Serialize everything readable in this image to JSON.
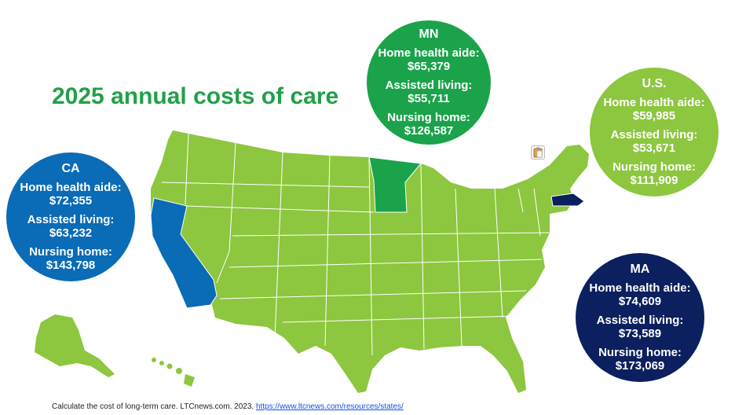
{
  "title": "2025 annual costs of care",
  "colors": {
    "title": "#21a04a",
    "states_default": "#8dc63f",
    "ca": "#0a6bb6",
    "mn": "#1aa34a",
    "ma": "#0c1f5e",
    "us_bubble": "#8dc63f",
    "state_border": "#ffffff"
  },
  "bubbles": {
    "mn": {
      "code": "MN",
      "home_health_label": "Home health aide:",
      "home_health": "$65,379",
      "assisted_label": "Assisted living:",
      "assisted": "$55,711",
      "nursing_label": "Nursing home:",
      "nursing": "$126,587"
    },
    "us": {
      "code": "U.S.",
      "home_health_label": "Home health aide:",
      "home_health": "$59,985",
      "assisted_label": "Assisted living:",
      "assisted": "$53,671",
      "nursing_label": "Nursing home:",
      "nursing": "$111,909"
    },
    "ca": {
      "code": "CA",
      "home_health_label": "Home health aide:",
      "home_health": "$72,355",
      "assisted_label": "Assisted living:",
      "assisted": "$63,232",
      "nursing_label": "Nursing home:",
      "nursing": "$143,798"
    },
    "ma": {
      "code": "MA",
      "home_health_label": "Home health aide:",
      "home_health": "$74,609",
      "assisted_label": "Assisted living:",
      "assisted": "$73,589",
      "nursing_label": "Nursing home:",
      "nursing": "$173,069"
    }
  },
  "footer": {
    "text": "Calculate the cost of long-term care. LTCnews.com. 2023. ",
    "link": "https://www.ltcnews.com/resources/states/"
  },
  "highlighted_states": [
    "CA",
    "MN",
    "MA"
  ],
  "icons": {
    "paste": "clipboard-icon"
  }
}
